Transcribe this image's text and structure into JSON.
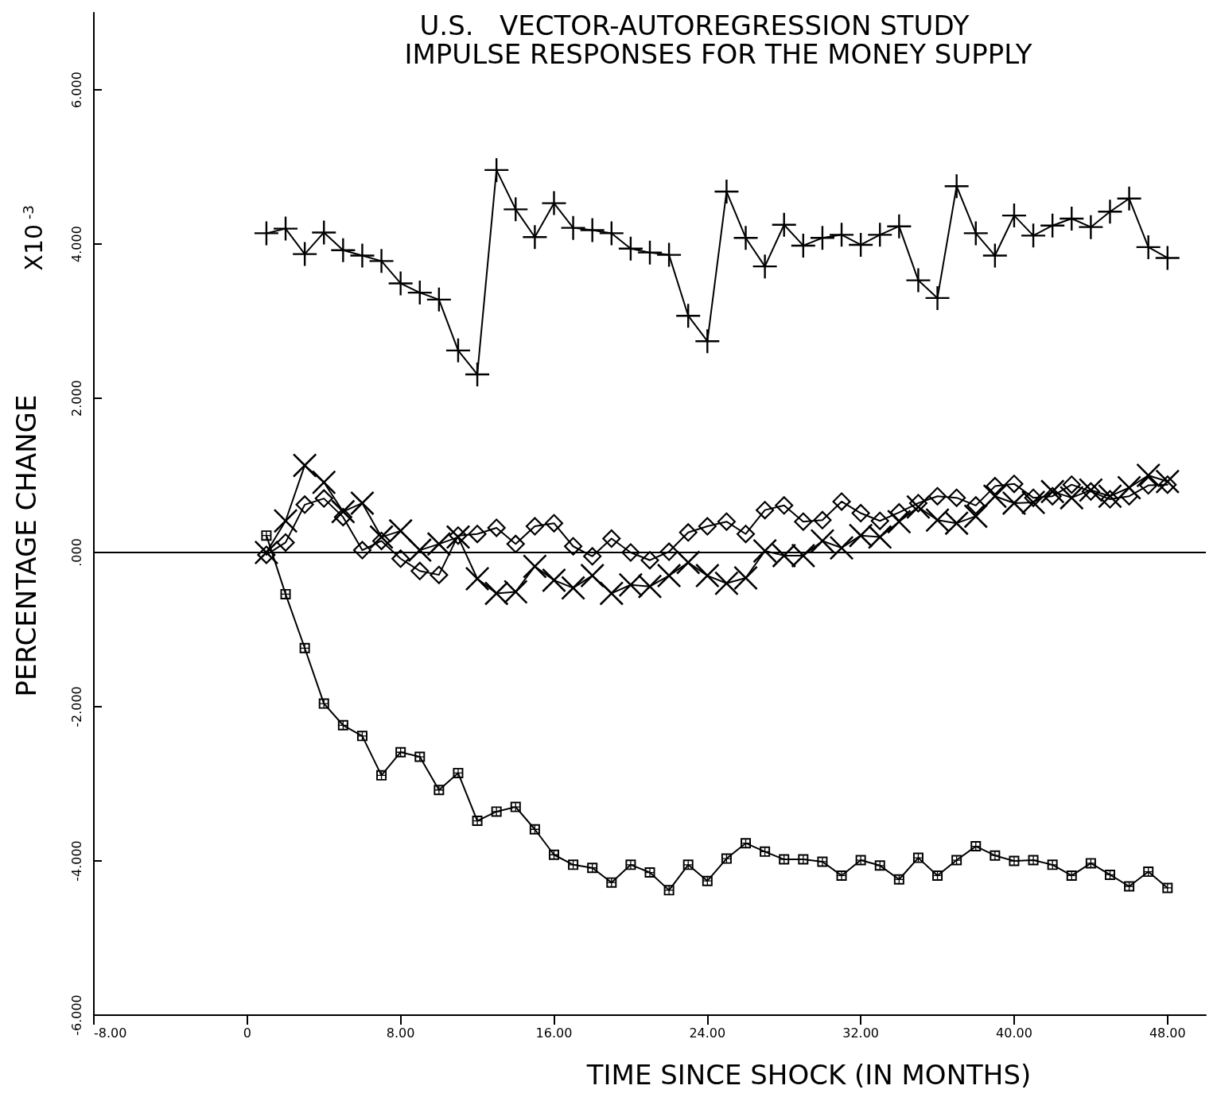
{
  "chart_data": {
    "type": "line",
    "title": "U.S.   VECTOR-AUTOREGRESSION STUDY",
    "subtitle": "IMPULSE RESPONSES FOR THE MONEY SUPPLY",
    "xlabel": "TIME SINCE SHOCK (IN MONTHS)",
    "ylabel": "PERCENTAGE CHANGE",
    "annotations": [
      "X10$^{-3}$"
    ],
    "x": [
      1,
      2,
      3,
      4,
      5,
      6,
      7,
      8,
      9,
      10,
      11,
      12,
      13,
      14,
      15,
      16,
      17,
      18,
      19,
      20,
      21,
      22,
      23,
      24,
      25,
      26,
      27,
      28,
      29,
      30,
      31,
      32,
      33,
      34,
      35,
      36,
      37,
      38,
      39,
      40,
      41,
      42,
      43,
      44,
      45,
      46,
      47,
      48
    ],
    "series": [
      {
        "color": "#000000",
        "marker": "cross",
        "values": [
          4.14,
          4.2,
          3.87,
          4.15,
          3.92,
          3.85,
          3.78,
          3.49,
          3.37,
          3.28,
          2.62,
          2.31,
          4.96,
          4.45,
          4.09,
          4.53,
          4.21,
          4.18,
          4.14,
          3.94,
          3.89,
          3.86,
          3.07,
          2.74,
          4.68,
          4.08,
          3.71,
          4.25,
          3.98,
          4.08,
          4.12,
          3.99,
          4.12,
          4.23,
          3.53,
          3.3,
          4.75,
          4.14,
          3.85,
          4.37,
          4.11,
          4.24,
          4.33,
          4.22,
          4.42,
          4.59,
          3.96,
          3.82
        ]
      },
      {
        "color": "#000000",
        "marker": "square",
        "values": [
          0.22,
          -0.54,
          -1.24,
          -1.96,
          -2.24,
          -2.38,
          -2.89,
          -2.59,
          -2.65,
          -3.08,
          -2.86,
          -3.48,
          -3.36,
          -3.3,
          -3.59,
          -3.92,
          -4.05,
          -4.09,
          -4.28,
          -4.05,
          -4.15,
          -4.38,
          -4.05,
          -4.26,
          -3.97,
          -3.77,
          -3.88,
          -3.98,
          -3.98,
          -4.01,
          -4.19,
          -3.99,
          -4.06,
          -4.24,
          -3.96,
          -4.19,
          -3.99,
          -3.81,
          -3.93,
          -4.0,
          -3.99,
          -4.05,
          -4.19,
          -4.03,
          -4.18,
          -4.33,
          -4.14,
          -4.35
        ]
      },
      {
        "color": "#000000",
        "marker": "diamond",
        "values": [
          -0.03,
          0.13,
          0.62,
          0.7,
          0.46,
          0.03,
          0.15,
          -0.08,
          -0.24,
          -0.29,
          0.22,
          0.24,
          0.32,
          0.11,
          0.34,
          0.38,
          0.08,
          -0.05,
          0.18,
          0.0,
          -0.1,
          0.01,
          0.26,
          0.34,
          0.4,
          0.24,
          0.55,
          0.61,
          0.4,
          0.42,
          0.66,
          0.51,
          0.41,
          0.52,
          0.64,
          0.73,
          0.71,
          0.61,
          0.86,
          0.89,
          0.71,
          0.73,
          0.88,
          0.79,
          0.69,
          0.73,
          0.87,
          0.88
        ]
      },
      {
        "color": "#000000",
        "marker": "x",
        "values": [
          0.0,
          0.41,
          1.13,
          0.91,
          0.53,
          0.64,
          0.2,
          0.28,
          0.03,
          0.11,
          0.2,
          -0.34,
          -0.53,
          -0.51,
          -0.18,
          -0.36,
          -0.46,
          -0.3,
          -0.53,
          -0.42,
          -0.44,
          -0.3,
          -0.13,
          -0.3,
          -0.4,
          -0.33,
          0.02,
          -0.04,
          -0.04,
          0.15,
          0.06,
          0.22,
          0.2,
          0.4,
          0.59,
          0.42,
          0.38,
          0.47,
          0.73,
          0.64,
          0.65,
          0.79,
          0.71,
          0.81,
          0.73,
          0.84,
          1.0,
          0.92
        ]
      }
    ],
    "xlim": [
      -8,
      50
    ],
    "xticks": [
      {
        "value": -8,
        "label": "-8.00"
      },
      {
        "value": 0,
        "label": "0"
      },
      {
        "value": 8,
        "label": "8.00"
      },
      {
        "value": 16,
        "label": "16.00"
      },
      {
        "value": 24,
        "label": "24.00"
      },
      {
        "value": 32,
        "label": "32.00"
      },
      {
        "value": 40,
        "label": "40.00"
      },
      {
        "value": 48,
        "label": "48.00"
      }
    ],
    "ylim": [
      -6,
      7
    ],
    "yticks": [
      {
        "value": -6,
        "label": "-6.000"
      },
      {
        "value": -4,
        "label": "-4.000"
      },
      {
        "value": -2,
        "label": "-2.000"
      },
      {
        "value": 0,
        "label": ".000"
      },
      {
        "value": 2,
        "label": "2.000"
      },
      {
        "value": 4,
        "label": "4.000"
      },
      {
        "value": 6,
        "label": "6.000"
      }
    ],
    "ref_lines": [
      {
        "axis": "y",
        "value": 0,
        "color": "#000000",
        "line_style": "solid"
      }
    ],
    "line_style": "solid"
  }
}
